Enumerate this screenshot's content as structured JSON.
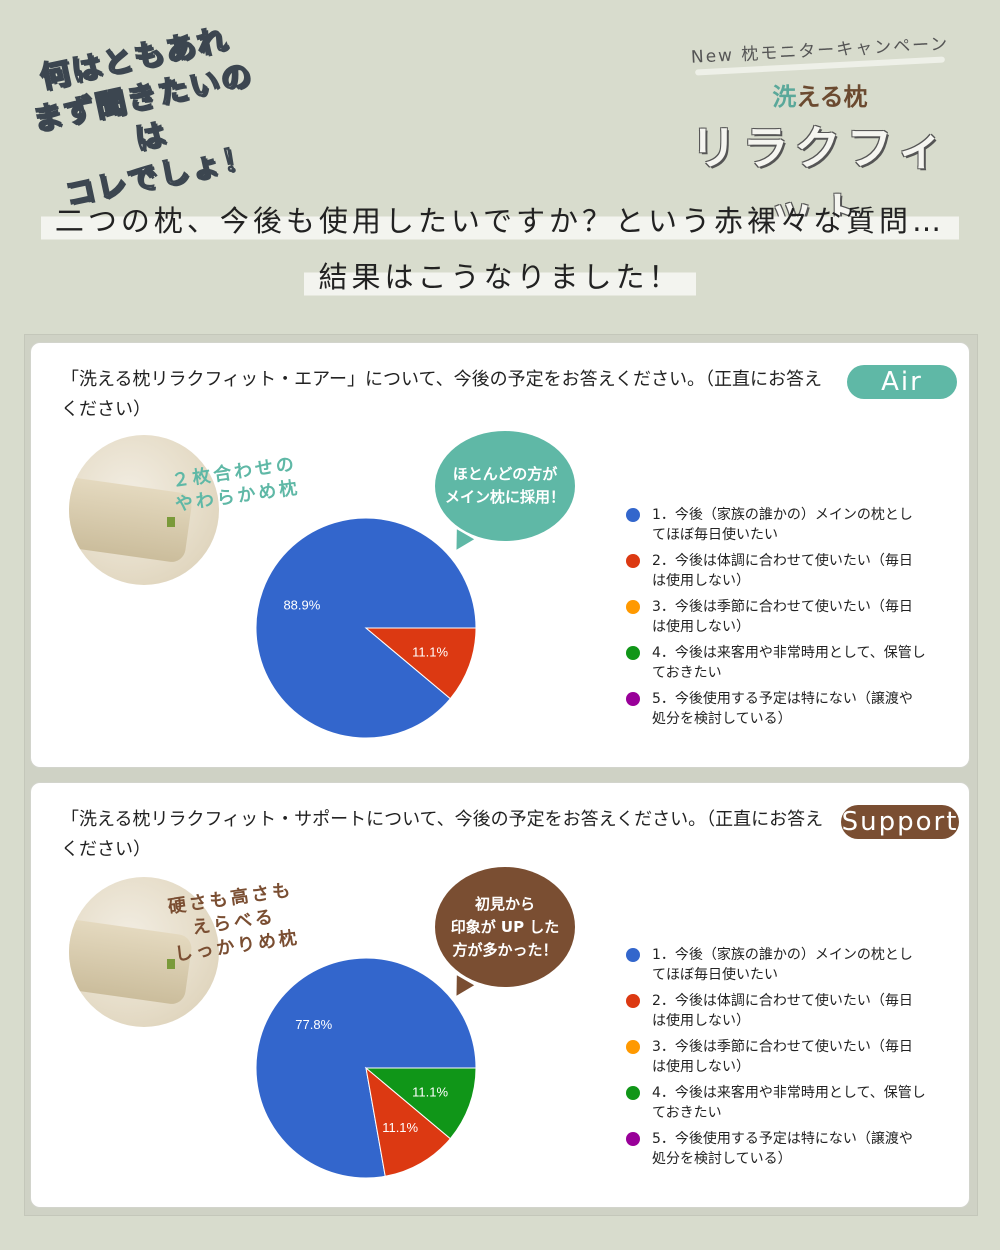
{
  "corner_tag": [
    "何はともあれ",
    "まず聞きたいのは",
    "コレでしょ！"
  ],
  "brand": {
    "campaign": "New 枕モニターキャンペーン",
    "sub_accent": "洗",
    "sub_rest": "える枕",
    "name": "リラクフィット"
  },
  "headline": {
    "line1": "二つの枕、今後も使用したいですか？という赤裸々な質問…",
    "line2": "結果はこうなりました！"
  },
  "colors": {
    "blue": "#3366cc",
    "red": "#dc3912",
    "orange": "#ff9900",
    "green": "#109618",
    "purple": "#990099",
    "air": "#5fb8a6",
    "support": "#7a4e32"
  },
  "cards": [
    {
      "question": "「洗える枕リラクフィット・エアー」について、今後の予定をお答えください。（正直にお答えください）",
      "badge": "Air",
      "caption": [
        "２枚合わせの",
        "やわらかめ枕"
      ],
      "bubble": [
        "ほとんどの方が",
        "メイン枕に採用！"
      ]
    },
    {
      "question": "「洗える枕リラクフィット・サポートについて、今後の予定をお答えください。（正直にお答えください）",
      "badge": "Support",
      "caption": [
        "硬さも高さも",
        "えらべる",
        "しっかりめ枕"
      ],
      "bubble": [
        "初見から",
        "印象が UP した",
        "方が多かった！"
      ]
    }
  ],
  "chart_data": [
    {
      "type": "pie",
      "title": "「洗える枕リラクフィット・エアー」について、今後の予定をお答えください。（正直にお答えください）",
      "categories": [
        "1．今後（家族の誰かの）メインの枕としてほぼ毎日使いたい",
        "2．今後は体調に合わせて使いたい（毎日は使用しない）",
        "3．今後は季節に合わせて使いたい（毎日は使用しない）",
        "4．今後は来客用や非常時用として、保管しておきたい",
        "5．今後使用する予定は特にない（譲渡や処分を検討している）"
      ],
      "values": [
        88.9,
        11.1,
        0,
        0,
        0
      ],
      "labels": [
        "88.9%",
        "11.1%",
        "",
        "",
        ""
      ],
      "legend": "right"
    },
    {
      "type": "pie",
      "title": "「洗える枕リラクフィット・サポートについて、今後の予定をお答えください。（正直にお答えください）",
      "categories": [
        "1．今後（家族の誰かの）メインの枕としてほぼ毎日使いたい",
        "2．今後は体調に合わせて使いたい（毎日は使用しない）",
        "3．今後は季節に合わせて使いたい（毎日は使用しない）",
        "4．今後は来客用や非常時用として、保管しておきたい",
        "5．今後使用する予定は特にない（譲渡や処分を検討している）"
      ],
      "values": [
        77.8,
        11.1,
        0,
        11.1,
        0
      ],
      "labels": [
        "77.8%",
        "11.1%",
        "",
        "11.1%",
        ""
      ],
      "legend": "right"
    }
  ]
}
